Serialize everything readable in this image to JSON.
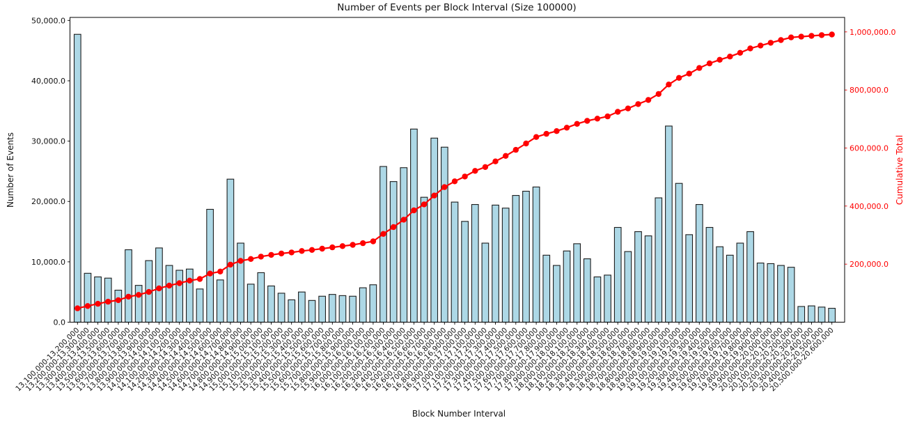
{
  "chart_data": {
    "type": "combo-bar-line",
    "title": "Number of Events per Block Interval (Size 100000)",
    "xlabel": "Block Number Interval",
    "ylabel_left": "Number of Events",
    "ylabel_right": "Cumulative Total",
    "x_tick_rotation_deg": 45,
    "grid": false,
    "legend": "none",
    "categories": [
      "13,100,000-13,200,000",
      "13,200,000-13,300,000",
      "13,300,000-13,400,000",
      "13,400,000-13,500,000",
      "13,500,000-13,600,000",
      "13,600,000-13,700,000",
      "13,700,000-13,800,000",
      "13,800,000-13,900,000",
      "13,900,000-14,000,000",
      "14,000,000-14,100,000",
      "14,100,000-14,200,000",
      "14,200,000-14,300,000",
      "14,300,000-14,400,000",
      "14,400,000-14,500,000",
      "14,500,000-14,600,000",
      "14,600,000-14,700,000",
      "14,700,000-14,800,000",
      "14,800,000-14,900,000",
      "14,900,000-15,000,000",
      "15,000,000-15,100,000",
      "15,100,000-15,200,000",
      "15,200,000-15,300,000",
      "15,300,000-15,400,000",
      "15,400,000-15,500,000",
      "15,500,000-15,600,000",
      "15,600,000-15,700,000",
      "15,700,000-15,800,000",
      "15,800,000-15,900,000",
      "15,900,000-16,000,000",
      "16,000,000-16,100,000",
      "16,100,000-16,200,000",
      "16,200,000-16,300,000",
      "16,300,000-16,400,000",
      "16,400,000-16,500,000",
      "16,500,000-16,600,000",
      "16,600,000-16,700,000",
      "16,700,000-16,800,000",
      "16,800,000-16,900,000",
      "16,900,000-17,000,000",
      "17,000,000-17,100,000",
      "17,100,000-17,200,000",
      "17,200,000-17,300,000",
      "17,300,000-17,400,000",
      "17,400,000-17,500,000",
      "17,500,000-17,600,000",
      "17,600,000-17,700,000",
      "17,700,000-17,800,000",
      "17,800,000-17,900,000",
      "17,900,000-18,000,000",
      "18,000,000-18,100,000",
      "18,100,000-18,200,000",
      "18,200,000-18,300,000",
      "18,300,000-18,400,000",
      "18,400,000-18,500,000",
      "18,500,000-18,600,000",
      "18,600,000-18,700,000",
      "18,700,000-18,800,000",
      "18,800,000-18,900,000",
      "18,900,000-19,000,000",
      "19,000,000-19,100,000",
      "19,100,000-19,200,000",
      "19,200,000-19,300,000",
      "19,300,000-19,400,000",
      "19,400,000-19,500,000",
      "19,500,000-19,600,000",
      "19,600,000-19,700,000",
      "19,700,000-19,800,000",
      "19,800,000-19,900,000",
      "19,900,000-20,000,000",
      "20,000,000-20,100,000",
      "20,100,000-20,200,000",
      "20,200,000-20,300,000",
      "20,300,000-20,400,000",
      "20,400,000-20,500,000",
      "20,500,000-20,600,000"
    ],
    "series": [
      {
        "name": "Number of Events",
        "type": "bar",
        "y_axis": "left",
        "color": "#ADD8E6",
        "edge_color": "#1c1c1c",
        "values": [
          47700,
          8100,
          7500,
          7300,
          5300,
          12000,
          6100,
          10200,
          12300,
          9400,
          8600,
          8800,
          5500,
          18700,
          7000,
          23700,
          13100,
          6300,
          8200,
          6000,
          4800,
          3700,
          5000,
          3600,
          4300,
          4600,
          4400,
          4300,
          5700,
          6200,
          25800,
          23300,
          25600,
          32000,
          20700,
          30500,
          29000,
          19900,
          16700,
          19500,
          13100,
          19400,
          18900,
          21000,
          21700,
          22400,
          11100,
          9400,
          11800,
          13000,
          10500,
          7500,
          7800,
          15700,
          11700,
          15000,
          14300,
          20600,
          32500,
          23000,
          14500,
          19500,
          15700,
          12500,
          11100,
          13100,
          15000,
          9800,
          9700,
          9400,
          9100,
          2600,
          2700,
          2500,
          2300
        ]
      },
      {
        "name": "Cumulative Total",
        "type": "line",
        "y_axis": "right",
        "color": "#FF0000",
        "marker": "circle",
        "values": [
          47700,
          55800,
          63300,
          70600,
          75900,
          87900,
          94000,
          104200,
          116500,
          125900,
          134500,
          143300,
          148800,
          167500,
          174500,
          198200,
          211300,
          217600,
          225800,
          231800,
          236600,
          240300,
          245300,
          248900,
          253200,
          257800,
          262200,
          266500,
          272200,
          278400,
          304200,
          327500,
          353100,
          385100,
          405800,
          436300,
          465300,
          485200,
          501900,
          521400,
          534500,
          553900,
          572800,
          593800,
          615500,
          637900,
          649000,
          658400,
          670200,
          683200,
          693700,
          701200,
          709000,
          724700,
          736400,
          751400,
          765700,
          786300,
          818800,
          841800,
          856300,
          875800,
          891500,
          904000,
          915100,
          928200,
          943200,
          953000,
          962700,
          972100,
          981200,
          983800,
          986500,
          989000,
          991300
        ]
      }
    ],
    "y_axis_left": {
      "max": 50500,
      "tick_values": [
        0,
        10000,
        20000,
        30000,
        40000,
        50000
      ],
      "tick_labels": [
        "0.0",
        "10,000.0",
        "20,000.0",
        "30,000.0",
        "40,000.0",
        "50,000.0"
      ],
      "color": "#111111"
    },
    "y_axis_right": {
      "max": 1050000,
      "tick_values": [
        200000,
        400000,
        600000,
        800000,
        1000000
      ],
      "tick_labels": [
        "200,000.0",
        "400,000.0",
        "600,000.0",
        "800,000.0",
        "1,000,000.0"
      ],
      "color": "#FF0000"
    }
  }
}
